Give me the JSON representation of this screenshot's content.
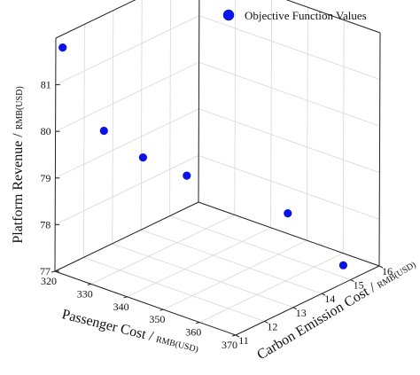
{
  "chart_data": {
    "type": "scatter",
    "subtype": "3d-scatter",
    "legend": {
      "label": "Objective Function Values",
      "position": "top-right"
    },
    "axes": {
      "x": {
        "label": "Passenger Cost",
        "unit": "RMB(USD)",
        "range": [
          320,
          370
        ],
        "ticks": [
          320,
          330,
          340,
          350,
          360,
          370
        ]
      },
      "y": {
        "label": "Carbon Emission Cost",
        "unit": "RMB(USD)",
        "range": [
          11,
          16
        ],
        "ticks": [
          11,
          12,
          13,
          14,
          15,
          16
        ]
      },
      "z": {
        "label": "Platform Revenue",
        "unit": "RMB(USD)",
        "range": [
          77,
          82
        ],
        "ticks": [
          77,
          78,
          79,
          80,
          81
        ]
      }
    },
    "grid": true,
    "marker_color": "#0a14e6",
    "points": [
      {
        "x": 321.9,
        "y": 11.0,
        "z": 81.85
      },
      {
        "x": 333.4,
        "y": 11.0,
        "z": 80.38
      },
      {
        "x": 336.3,
        "y": 12.0,
        "z": 79.59
      },
      {
        "x": 340.5,
        "y": 13.0,
        "z": 79.02
      },
      {
        "x": 352.6,
        "y": 15.0,
        "z": 77.95
      },
      {
        "x": 364.8,
        "y": 15.4,
        "z": 77.05
      }
    ]
  }
}
